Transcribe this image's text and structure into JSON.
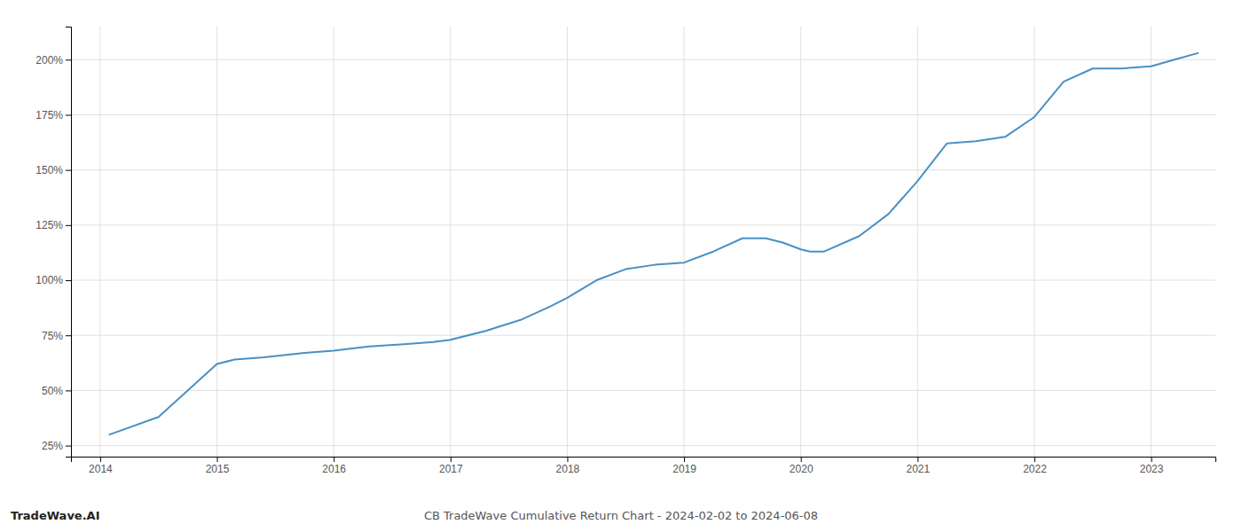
{
  "chart_data": {
    "type": "line",
    "title": "CB TradeWave Cumulative Return Chart - 2024-02-02 to 2024-06-08",
    "annotations": [
      "TradeWave.AI"
    ],
    "color": "#4a90c4",
    "grid": true,
    "x": [
      2014.08,
      2014.5,
      2015.0,
      2015.15,
      2015.4,
      2015.75,
      2016.0,
      2016.3,
      2016.6,
      2016.85,
      2017.0,
      2017.3,
      2017.6,
      2017.85,
      2018.0,
      2018.25,
      2018.5,
      2018.75,
      2019.0,
      2019.25,
      2019.5,
      2019.7,
      2019.85,
      2020.0,
      2020.08,
      2020.2,
      2020.5,
      2020.75,
      2021.0,
      2021.25,
      2021.5,
      2021.75,
      2022.0,
      2022.25,
      2022.5,
      2022.75,
      2023.0,
      2023.2,
      2023.4
    ],
    "values": [
      30,
      38,
      62,
      64,
      65,
      67,
      68,
      70,
      71,
      72,
      73,
      77,
      82,
      88,
      92,
      100,
      105,
      107,
      108,
      113,
      119,
      119,
      117,
      114,
      113,
      113,
      120,
      130,
      145,
      162,
      163,
      165,
      174,
      190,
      196,
      196,
      197,
      200,
      203
    ],
    "xlim": [
      2013.75,
      2023.55
    ],
    "xticks": [
      2014,
      2015,
      2016,
      2017,
      2018,
      2019,
      2020,
      2021,
      2022,
      2023
    ],
    "ylim": [
      20,
      215
    ],
    "yticks": [
      {
        "value": 25,
        "label": "25%"
      },
      {
        "value": 50,
        "label": "50%"
      },
      {
        "value": 75,
        "label": "75%"
      },
      {
        "value": 100,
        "label": "100%"
      },
      {
        "value": 125,
        "label": "125%"
      },
      {
        "value": 150,
        "label": "150%"
      },
      {
        "value": 175,
        "label": "175%"
      },
      {
        "value": 200,
        "label": "200%"
      }
    ]
  }
}
